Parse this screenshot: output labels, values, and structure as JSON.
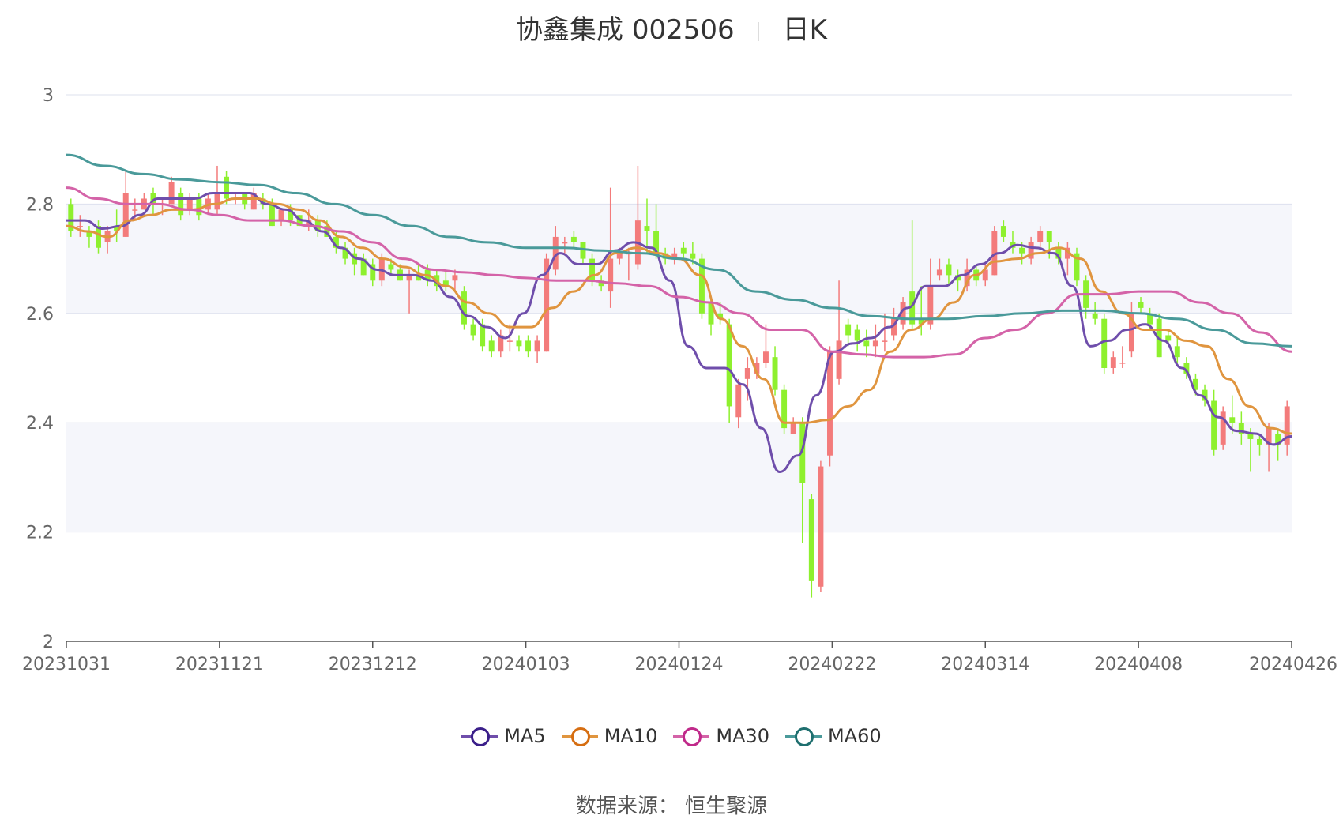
{
  "title": {
    "stock": "协鑫集成 002506",
    "period": "日K"
  },
  "source": {
    "label": "数据来源：",
    "value": "恒生聚源"
  },
  "legend": [
    {
      "name": "MA5",
      "color": "#6f4eab",
      "ring": "#3b1f8a"
    },
    {
      "name": "MA10",
      "color": "#e0953f",
      "ring": "#d66e12"
    },
    {
      "name": "MA30",
      "color": "#d463a8",
      "ring": "#c02a8a"
    },
    {
      "name": "MA60",
      "color": "#4a9a9a",
      "ring": "#1f6f6f"
    }
  ],
  "chart_data": {
    "type": "candlestick",
    "title": "协鑫集成 002506 日K",
    "ylim": [
      2,
      3
    ],
    "yticks": [
      "3",
      "2.8",
      "2.6",
      "2.4",
      "2.2",
      "2"
    ],
    "xticks": [
      "20231031",
      "20231121",
      "20231212",
      "20240103",
      "20240124",
      "20240222",
      "20240314",
      "20240408",
      "20240426"
    ],
    "up_color": "#f37b7b",
    "down_color": "#8ef02e",
    "grid": true,
    "legend_position": "bottom",
    "candles": [
      [
        2.8,
        2.75,
        2.81,
        2.74
      ],
      [
        2.76,
        2.76,
        2.78,
        2.74
      ],
      [
        2.75,
        2.74,
        2.76,
        2.72
      ],
      [
        2.76,
        2.72,
        2.77,
        2.71
      ],
      [
        2.73,
        2.75,
        2.76,
        2.71
      ],
      [
        2.76,
        2.75,
        2.79,
        2.73
      ],
      [
        2.74,
        2.82,
        2.86,
        2.74
      ],
      [
        2.79,
        2.79,
        2.81,
        2.77
      ],
      [
        2.79,
        2.81,
        2.82,
        2.79
      ],
      [
        2.82,
        2.8,
        2.83,
        2.78
      ],
      [
        2.8,
        2.8,
        2.81,
        2.78
      ],
      [
        2.8,
        2.84,
        2.85,
        2.8
      ],
      [
        2.82,
        2.78,
        2.83,
        2.77
      ],
      [
        2.79,
        2.81,
        2.82,
        2.78
      ],
      [
        2.81,
        2.78,
        2.82,
        2.77
      ],
      [
        2.79,
        2.81,
        2.82,
        2.78
      ],
      [
        2.79,
        2.82,
        2.87,
        2.78
      ],
      [
        2.85,
        2.81,
        2.86,
        2.8
      ],
      [
        2.81,
        2.81,
        2.82,
        2.8
      ],
      [
        2.82,
        2.8,
        2.82,
        2.79
      ],
      [
        2.79,
        2.82,
        2.83,
        2.79
      ],
      [
        2.81,
        2.8,
        2.82,
        2.79
      ],
      [
        2.8,
        2.76,
        2.81,
        2.76
      ],
      [
        2.77,
        2.79,
        2.79,
        2.76
      ],
      [
        2.79,
        2.77,
        2.8,
        2.76
      ],
      [
        2.78,
        2.76,
        2.78,
        2.76
      ],
      [
        2.76,
        2.77,
        2.79,
        2.75
      ],
      [
        2.77,
        2.75,
        2.78,
        2.74
      ],
      [
        2.76,
        2.74,
        2.77,
        2.74
      ],
      [
        2.74,
        2.72,
        2.75,
        2.71
      ],
      [
        2.72,
        2.7,
        2.73,
        2.69
      ],
      [
        2.71,
        2.69,
        2.72,
        2.67
      ],
      [
        2.7,
        2.67,
        2.71,
        2.67
      ],
      [
        2.69,
        2.66,
        2.7,
        2.65
      ],
      [
        2.66,
        2.7,
        2.71,
        2.65
      ],
      [
        2.69,
        2.68,
        2.7,
        2.67
      ],
      [
        2.68,
        2.66,
        2.69,
        2.66
      ],
      [
        2.66,
        2.67,
        2.68,
        2.6
      ],
      [
        2.67,
        2.66,
        2.69,
        2.66
      ],
      [
        2.68,
        2.66,
        2.69,
        2.65
      ],
      [
        2.67,
        2.65,
        2.68,
        2.64
      ],
      [
        2.66,
        2.65,
        2.68,
        2.64
      ],
      [
        2.66,
        2.67,
        2.68,
        2.64
      ],
      [
        2.64,
        2.58,
        2.65,
        2.57
      ],
      [
        2.58,
        2.56,
        2.59,
        2.55
      ],
      [
        2.58,
        2.54,
        2.59,
        2.53
      ],
      [
        2.55,
        2.53,
        2.56,
        2.52
      ],
      [
        2.53,
        2.56,
        2.57,
        2.52
      ],
      [
        2.55,
        2.55,
        2.58,
        2.53
      ],
      [
        2.55,
        2.54,
        2.56,
        2.53
      ],
      [
        2.55,
        2.53,
        2.56,
        2.52
      ],
      [
        2.53,
        2.55,
        2.56,
        2.51
      ],
      [
        2.53,
        2.7,
        2.71,
        2.53
      ],
      [
        2.68,
        2.74,
        2.76,
        2.67
      ],
      [
        2.73,
        2.73,
        2.74,
        2.71
      ],
      [
        2.74,
        2.73,
        2.75,
        2.72
      ],
      [
        2.73,
        2.7,
        2.73,
        2.69
      ],
      [
        2.7,
        2.66,
        2.71,
        2.65
      ],
      [
        2.66,
        2.65,
        2.67,
        2.64
      ],
      [
        2.64,
        2.7,
        2.83,
        2.61
      ],
      [
        2.7,
        2.71,
        2.72,
        2.69
      ],
      [
        2.71,
        2.71,
        2.72,
        2.66
      ],
      [
        2.69,
        2.77,
        2.87,
        2.68
      ],
      [
        2.76,
        2.75,
        2.81,
        2.71
      ],
      [
        2.75,
        2.71,
        2.8,
        2.7
      ],
      [
        2.71,
        2.7,
        2.72,
        2.69
      ],
      [
        2.7,
        2.71,
        2.72,
        2.69
      ],
      [
        2.72,
        2.71,
        2.73,
        2.7
      ],
      [
        2.71,
        2.7,
        2.73,
        2.69
      ],
      [
        2.7,
        2.6,
        2.71,
        2.59
      ],
      [
        2.62,
        2.58,
        2.63,
        2.56
      ],
      [
        2.6,
        2.59,
        2.62,
        2.58
      ],
      [
        2.58,
        2.43,
        2.59,
        2.4
      ],
      [
        2.41,
        2.47,
        2.48,
        2.39
      ],
      [
        2.48,
        2.5,
        2.52,
        2.44
      ],
      [
        2.49,
        2.51,
        2.52,
        2.48
      ],
      [
        2.51,
        2.53,
        2.58,
        2.5
      ],
      [
        2.52,
        2.46,
        2.54,
        2.45
      ],
      [
        2.46,
        2.39,
        2.47,
        2.38
      ],
      [
        2.38,
        2.4,
        2.41,
        2.38
      ],
      [
        2.4,
        2.29,
        2.41,
        2.18
      ],
      [
        2.26,
        2.11,
        2.27,
        2.08
      ],
      [
        2.1,
        2.32,
        2.33,
        2.09
      ],
      [
        2.34,
        2.53,
        2.54,
        2.32
      ],
      [
        2.48,
        2.55,
        2.66,
        2.47
      ],
      [
        2.58,
        2.56,
        2.59,
        2.54
      ],
      [
        2.57,
        2.55,
        2.58,
        2.53
      ],
      [
        2.55,
        2.54,
        2.57,
        2.52
      ],
      [
        2.54,
        2.55,
        2.58,
        2.52
      ],
      [
        2.55,
        2.55,
        2.6,
        2.53
      ],
      [
        2.56,
        2.59,
        2.61,
        2.55
      ],
      [
        2.58,
        2.62,
        2.63,
        2.57
      ],
      [
        2.64,
        2.58,
        2.77,
        2.57
      ],
      [
        2.59,
        2.58,
        2.65,
        2.56
      ],
      [
        2.58,
        2.65,
        2.7,
        2.57
      ],
      [
        2.67,
        2.68,
        2.7,
        2.66
      ],
      [
        2.69,
        2.67,
        2.7,
        2.65
      ],
      [
        2.67,
        2.66,
        2.68,
        2.64
      ],
      [
        2.65,
        2.68,
        2.7,
        2.64
      ],
      [
        2.68,
        2.66,
        2.69,
        2.65
      ],
      [
        2.66,
        2.68,
        2.69,
        2.65
      ],
      [
        2.67,
        2.75,
        2.76,
        2.67
      ],
      [
        2.76,
        2.74,
        2.77,
        2.73
      ],
      [
        2.73,
        2.72,
        2.75,
        2.71
      ],
      [
        2.72,
        2.71,
        2.73,
        2.69
      ],
      [
        2.7,
        2.73,
        2.74,
        2.69
      ],
      [
        2.73,
        2.75,
        2.76,
        2.72
      ],
      [
        2.75,
        2.73,
        2.75,
        2.7
      ],
      [
        2.72,
        2.7,
        2.73,
        2.69
      ],
      [
        2.7,
        2.72,
        2.73,
        2.67
      ],
      [
        2.71,
        2.66,
        2.72,
        2.65
      ],
      [
        2.66,
        2.61,
        2.67,
        2.59
      ],
      [
        2.6,
        2.59,
        2.62,
        2.58
      ],
      [
        2.59,
        2.5,
        2.6,
        2.49
      ],
      [
        2.5,
        2.52,
        2.53,
        2.49
      ],
      [
        2.51,
        2.51,
        2.54,
        2.5
      ],
      [
        2.53,
        2.6,
        2.62,
        2.52
      ],
      [
        2.62,
        2.61,
        2.63,
        2.6
      ],
      [
        2.6,
        2.58,
        2.61,
        2.57
      ],
      [
        2.59,
        2.52,
        2.6,
        2.52
      ],
      [
        2.56,
        2.55,
        2.57,
        2.54
      ],
      [
        2.54,
        2.52,
        2.56,
        2.51
      ],
      [
        2.51,
        2.49,
        2.52,
        2.48
      ],
      [
        2.48,
        2.46,
        2.49,
        2.45
      ],
      [
        2.46,
        2.44,
        2.47,
        2.43
      ],
      [
        2.44,
        2.35,
        2.46,
        2.34
      ],
      [
        2.36,
        2.42,
        2.43,
        2.35
      ],
      [
        2.41,
        2.4,
        2.45,
        2.38
      ],
      [
        2.4,
        2.38,
        2.42,
        2.36
      ],
      [
        2.38,
        2.37,
        2.39,
        2.31
      ],
      [
        2.37,
        2.36,
        2.38,
        2.34
      ],
      [
        2.36,
        2.39,
        2.4,
        2.31
      ],
      [
        2.38,
        2.36,
        2.39,
        2.33
      ],
      [
        2.36,
        2.43,
        2.44,
        2.34
      ]
    ],
    "series": [
      {
        "name": "MA5",
        "values": [
          2.77,
          2.77,
          2.755,
          2.76,
          2.78,
          2.81,
          2.81,
          2.81,
          2.82,
          2.82,
          2.82,
          2.8,
          2.79,
          2.77,
          2.75,
          2.72,
          2.7,
          2.68,
          2.67,
          2.67,
          2.66,
          2.63,
          2.595,
          2.575,
          2.555,
          2.6,
          2.67,
          2.71,
          2.69,
          2.69,
          2.715,
          2.73,
          2.72,
          2.66,
          2.54,
          2.5,
          2.5,
          2.47,
          2.39,
          2.31,
          2.34,
          2.45,
          2.53,
          2.545,
          2.555,
          2.575,
          2.61,
          2.65,
          2.65,
          2.67,
          2.69,
          2.71,
          2.725,
          2.72,
          2.71,
          2.65,
          2.54,
          2.55,
          2.57,
          2.58,
          2.55,
          2.5,
          2.45,
          2.41,
          2.385,
          2.38,
          2.36,
          2.375
        ]
      },
      {
        "name": "MA10",
        "values": [
          2.76,
          2.75,
          2.74,
          2.77,
          2.78,
          2.79,
          2.79,
          2.8,
          2.81,
          2.81,
          2.8,
          2.79,
          2.77,
          2.74,
          2.72,
          2.7,
          2.685,
          2.67,
          2.65,
          2.62,
          2.6,
          2.575,
          2.575,
          2.61,
          2.64,
          2.67,
          2.71,
          2.72,
          2.71,
          2.7,
          2.67,
          2.59,
          2.54,
          2.48,
          2.4,
          2.4,
          2.405,
          2.43,
          2.46,
          2.53,
          2.57,
          2.59,
          2.62,
          2.67,
          2.695,
          2.7,
          2.71,
          2.72,
          2.7,
          2.64,
          2.6,
          2.57,
          2.57,
          2.55,
          2.54,
          2.48,
          2.43,
          2.39,
          2.38
        ]
      },
      {
        "name": "MA30",
        "values": [
          2.83,
          2.81,
          2.8,
          2.8,
          2.79,
          2.78,
          2.77,
          2.77,
          2.76,
          2.75,
          2.73,
          2.7,
          2.68,
          2.675,
          2.67,
          2.665,
          2.66,
          2.66,
          2.655,
          2.65,
          2.63,
          2.62,
          2.6,
          2.57,
          2.57,
          2.53,
          2.525,
          2.52,
          2.52,
          2.525,
          2.555,
          2.57,
          2.6,
          2.635,
          2.635,
          2.64,
          2.64,
          2.62,
          2.6,
          2.565,
          2.53
        ]
      },
      {
        "name": "MA60",
        "values": [
          2.89,
          2.87,
          2.855,
          2.845,
          2.84,
          2.835,
          2.82,
          2.8,
          2.78,
          2.76,
          2.74,
          2.73,
          2.72,
          2.72,
          2.715,
          2.71,
          2.7,
          2.68,
          2.64,
          2.625,
          2.61,
          2.595,
          2.59,
          2.59,
          2.595,
          2.6,
          2.605,
          2.605,
          2.6,
          2.59,
          2.57,
          2.545,
          2.54
        ]
      }
    ]
  }
}
